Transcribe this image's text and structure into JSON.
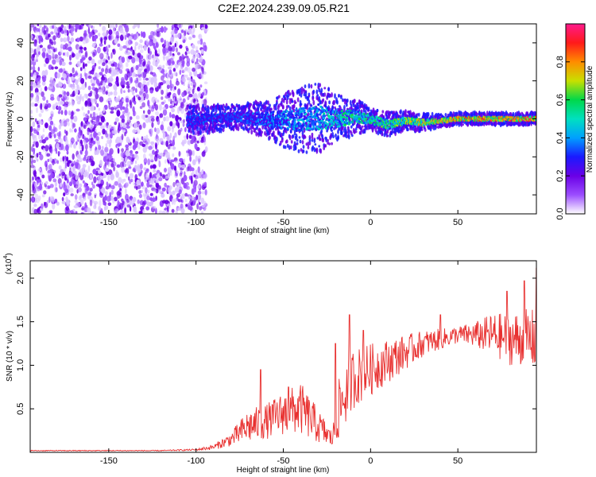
{
  "title": "C2E2.2024.239.09.05.R21",
  "colors": {
    "snr_line": "#e8302f",
    "colormap": [
      "#ffffff",
      "#9b4dff",
      "#6a00e6",
      "#1a1aff",
      "#00a0ff",
      "#00e0c0",
      "#00d84a",
      "#c8e000",
      "#ff8c00",
      "#ff1a1a",
      "#ff1a8c"
    ]
  },
  "chart_data": [
    {
      "type": "heatmap",
      "name": "spectrogram",
      "xlabel": "Height of straight line (km)",
      "ylabel": "Frequency (Hz)",
      "xlim": [
        -195,
        95
      ],
      "ylim": [
        -50,
        50
      ],
      "xticks": [
        -150,
        -100,
        -50,
        0,
        50
      ],
      "xtick_labels": [
        "-150",
        "-100",
        "-50",
        "0",
        "50"
      ],
      "yticks": [
        -40,
        -20,
        0,
        20,
        40
      ],
      "ytick_labels": [
        "-40",
        "-20",
        "0",
        "20",
        "40"
      ],
      "colorbar": {
        "label": "Normalized spectral amplitude",
        "range": [
          0,
          1
        ],
        "ticks": [
          0.0,
          0.2,
          0.4,
          0.6,
          0.8
        ],
        "tick_labels": [
          "0.0",
          "0.2",
          "0.4",
          "0.6",
          "0.8"
        ]
      },
      "noise_region_km": [
        -195,
        -100
      ],
      "signal_band": {
        "x": [
          -105,
          -80,
          -60,
          -45,
          -30,
          -20,
          -10,
          0,
          10,
          20,
          30,
          40,
          50,
          60,
          70,
          80,
          95
        ],
        "center_hz": [
          -1,
          1,
          0,
          -1,
          1,
          0,
          1,
          0,
          -3,
          -1,
          -2,
          -1,
          0,
          0,
          0,
          0,
          0
        ],
        "halfwidth_hz": [
          5,
          4,
          6,
          10,
          12,
          8,
          6,
          4,
          4,
          3,
          3,
          2,
          2,
          2,
          2,
          2,
          2
        ],
        "peak_amplitude": [
          0.35,
          0.35,
          0.4,
          0.45,
          0.5,
          0.55,
          0.6,
          0.6,
          0.65,
          0.7,
          0.75,
          0.8,
          0.85,
          0.9,
          0.9,
          0.9,
          0.95
        ]
      }
    },
    {
      "type": "line",
      "name": "snr",
      "xlabel": "Height of straight line (km)",
      "ylabel": "SNR (10 * v/v)",
      "scale_label": "(x10",
      "scale_exponent": "4",
      "xlim": [
        -195,
        95
      ],
      "ylim": [
        0,
        2.2
      ],
      "xticks": [
        -150,
        -100,
        -50,
        0,
        50
      ],
      "xtick_labels": [
        "-150",
        "-100",
        "-50",
        "0",
        "50"
      ],
      "yticks": [
        0.5,
        1.0,
        1.5,
        2.0
      ],
      "ytick_labels": [
        "0.5",
        "1.0",
        "1.5",
        "2.0"
      ],
      "series": [
        {
          "name": "SNR",
          "x": [
            -195,
            -150,
            -120,
            -100,
            -90,
            -80,
            -70,
            -60,
            -50,
            -40,
            -30,
            -22,
            -18,
            -10,
            0,
            10,
            20,
            30,
            40,
            50,
            60,
            70,
            80,
            90,
            95
          ],
          "mean": [
            0.02,
            0.02,
            0.02,
            0.03,
            0.06,
            0.15,
            0.3,
            0.35,
            0.45,
            0.5,
            0.3,
            0.15,
            0.5,
            0.85,
            0.95,
            1.05,
            1.15,
            1.25,
            1.3,
            1.35,
            1.35,
            1.35,
            1.3,
            1.3,
            1.3
          ],
          "spread": [
            0.005,
            0.005,
            0.005,
            0.01,
            0.03,
            0.08,
            0.2,
            0.2,
            0.25,
            0.3,
            0.2,
            0.1,
            0.35,
            0.35,
            0.3,
            0.25,
            0.2,
            0.15,
            0.12,
            0.1,
            0.15,
            0.25,
            0.3,
            0.35,
            0.35
          ],
          "peaks": [
            [
              -63,
              0.95
            ],
            [
              -47,
              0.75
            ],
            [
              -20,
              1.25
            ],
            [
              -12,
              1.58
            ],
            [
              -4,
              1.4
            ],
            [
              40,
              1.58
            ],
            [
              78,
              1.85
            ],
            [
              88,
              1.97
            ],
            [
              95,
              2.12
            ]
          ]
        }
      ]
    }
  ]
}
